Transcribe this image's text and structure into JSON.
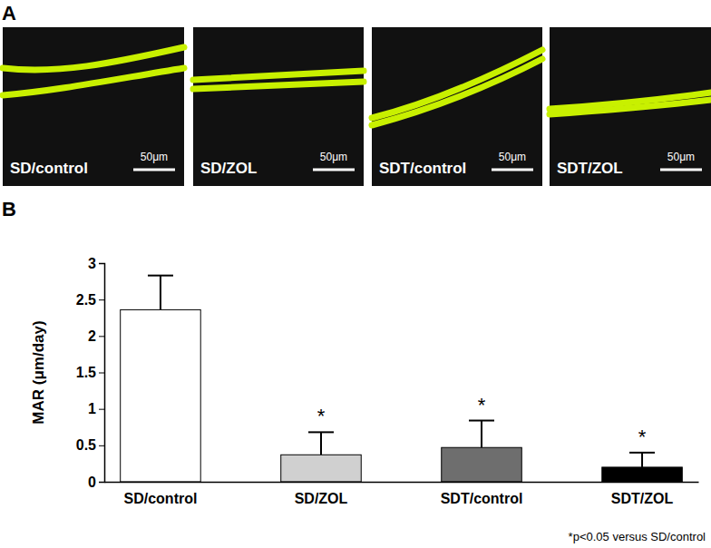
{
  "panel_labels": [
    "A",
    "B"
  ],
  "images": [
    {
      "label": "SD/control",
      "scale_bar": "50μm"
    },
    {
      "label": "SD/ZOL",
      "scale_bar": "50μm"
    },
    {
      "label": "SDT/control",
      "scale_bar": "50μm"
    },
    {
      "label": "SDT/ZOL",
      "scale_bar": "50μm"
    }
  ],
  "chart_data": {
    "type": "bar",
    "y_label": "MAR (μm/day)",
    "categories": [
      "SD/control",
      "SD/ZOL",
      "SDT/control",
      "SDT/ZOL"
    ],
    "values": [
      2.36,
      0.37,
      0.47,
      0.2
    ],
    "errors": [
      0.47,
      0.31,
      0.37,
      0.2
    ],
    "colors": [
      "#ffffff",
      "#d0d0d0",
      "#6e6e6e",
      "#000000"
    ],
    "significance": [
      null,
      "*",
      "*",
      "*"
    ],
    "footnote": "*p<0.05 versus SD/control",
    "ylim": [
      0,
      3
    ],
    "yticks": [
      0,
      0.5,
      1,
      1.5,
      2,
      2.5,
      3
    ],
    "grid": false
  }
}
